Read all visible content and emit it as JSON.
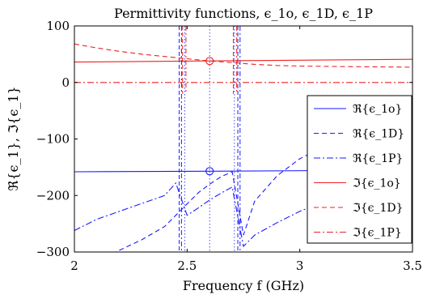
{
  "chart_data": {
    "type": "line",
    "title": "Permittivity functions, ϵ_1o, ϵ_1D, ϵ_1P",
    "xlabel": "Frequency f (GHz)",
    "ylabel": "ℜ{ϵ_1}, ℑ{ϵ_1}",
    "xlim": [
      2,
      3.5
    ],
    "ylim": [
      -300,
      100
    ],
    "xticks": [
      "2",
      "2.5",
      "3",
      "3.5"
    ],
    "yticks": [
      "100",
      "0",
      "−100",
      "−200",
      "−300"
    ],
    "grid": false,
    "legend_position": "right",
    "vertical_markers_x": [
      2.49,
      2.6,
      2.71
    ],
    "colors": {
      "real": "#1a1aff",
      "imag": "#ee2222"
    },
    "series": [
      {
        "name": "ℜ{ϵ_1o}",
        "color": "#1a1aff",
        "dash": "solid",
        "x": [
          2,
          2.6,
          3.5
        ],
        "y": [
          -158,
          -157,
          -155
        ]
      },
      {
        "name": "ℜ{ϵ_1D}",
        "color": "#1a1aff",
        "dash": "dashed",
        "x": [
          2,
          2.1,
          2.2,
          2.3,
          2.4,
          2.45,
          2.5,
          2.55,
          2.6,
          2.65,
          2.7,
          2.75,
          2.8,
          2.9,
          3.0,
          3.1,
          3.2,
          3.3,
          3.5
        ],
        "y": [
          -330,
          -315,
          -297,
          -278,
          -255,
          -235,
          -215,
          -195,
          -180,
          -167,
          -158,
          -270,
          -210,
          -165,
          -135,
          -115,
          -100,
          -92,
          -88
        ]
      },
      {
        "name": "ℜ{ϵ_1P}",
        "color": "#1a1aff",
        "dash": "dashdot",
        "x": [
          2,
          2.1,
          2.2,
          2.3,
          2.4,
          2.45,
          2.5,
          2.55,
          2.6,
          2.65,
          2.7,
          2.75,
          2.8,
          2.9,
          3.0,
          3.1,
          3.2,
          3.3,
          3.4,
          3.5
        ],
        "y": [
          -262,
          -242,
          -228,
          -214,
          -200,
          -178,
          -235,
          -222,
          -208,
          -196,
          -185,
          -290,
          -270,
          -248,
          -228,
          -212,
          -196,
          -178,
          -148,
          -100
        ]
      },
      {
        "name": "ℑ{ϵ_1o}",
        "color": "#ee2222",
        "dash": "solid",
        "x": [
          2,
          2.6,
          3.5
        ],
        "y": [
          36,
          38,
          41
        ]
      },
      {
        "name": "ℑ{ϵ_1D}",
        "color": "#ee2222",
        "dash": "dashed",
        "x": [
          2,
          2.1,
          2.2,
          2.3,
          2.4,
          2.5,
          2.6,
          2.7,
          2.8,
          2.9,
          3.0,
          3.2,
          3.5
        ],
        "y": [
          68,
          61,
          55,
          50,
          46,
          42,
          38,
          35,
          32,
          30,
          29,
          28,
          27
        ]
      },
      {
        "name": "ℑ{ϵ_1P}",
        "color": "#ee2222",
        "dash": "dashdot",
        "x": [
          2,
          2.5,
          3,
          3.5
        ],
        "y": [
          0,
          0,
          0,
          0
        ]
      }
    ],
    "annotations": [
      {
        "type": "circle",
        "x": 2.6,
        "y": -157,
        "color": "#1a1aff"
      },
      {
        "type": "circle",
        "x": 2.6,
        "y": 38,
        "color": "#ee2222"
      }
    ]
  }
}
